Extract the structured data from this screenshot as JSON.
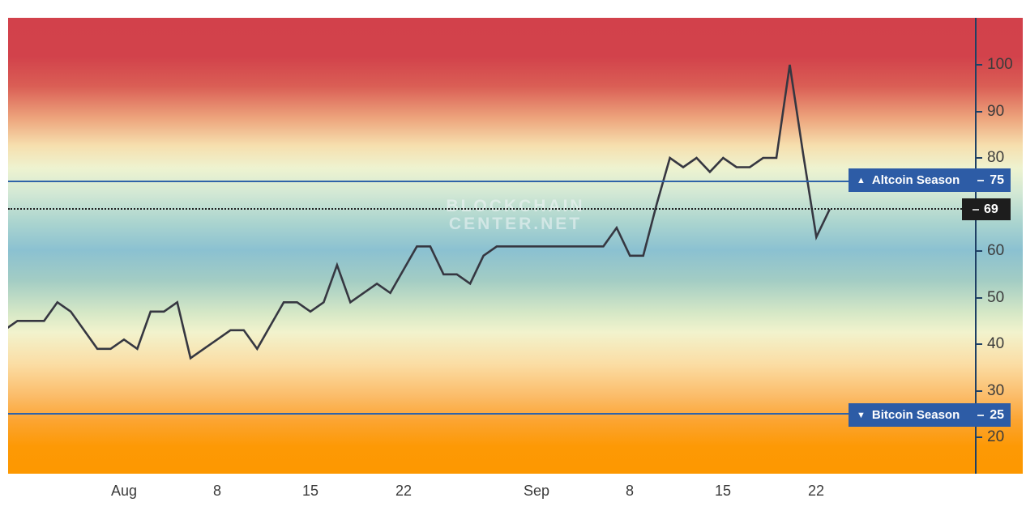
{
  "watermark": {
    "line1": "BLOCKCHAIN",
    "line2": "CENTER.NET"
  },
  "badges": {
    "altcoin": {
      "icon_glyph": "▲",
      "label": "Altcoin Season",
      "value": "75"
    },
    "bitcoin": {
      "icon_glyph": "▼",
      "label": "Bitcoin Season",
      "value": "25"
    },
    "current": {
      "value": "69"
    }
  },
  "y_axis": {
    "tick_labels": [
      "100",
      "90",
      "80",
      "60",
      "50",
      "40",
      "30",
      "20"
    ],
    "tick_values": [
      100,
      90,
      80,
      60,
      50,
      40,
      30,
      20
    ]
  },
  "x_axis": {
    "tick_labels": [
      "Aug",
      "8",
      "15",
      "22",
      "Sep",
      "8",
      "15",
      "22"
    ]
  },
  "colors": {
    "gradient_top": "#d2414b",
    "gradient_bottom": "#fd9800",
    "blue_60_band": "#8bc1d1",
    "threshold_line": "#2f63a8",
    "badge_background": "#2d5ca6",
    "current_badge_background": "#1d1d1d",
    "axis_line": "#1f4064",
    "chart_line": "#363741",
    "tick_text": "#3b3b3b"
  },
  "chart_data": {
    "type": "line",
    "x": [
      "Jul 23",
      "Jul 24",
      "Jul 25",
      "Jul 26",
      "Jul 27",
      "Jul 28",
      "Jul 29",
      "Jul 30",
      "Jul 31",
      "Aug 1",
      "Aug 2",
      "Aug 3",
      "Aug 4",
      "Aug 5",
      "Aug 6",
      "Aug 7",
      "Aug 8",
      "Aug 9",
      "Aug 10",
      "Aug 11",
      "Aug 12",
      "Aug 13",
      "Aug 14",
      "Aug 15",
      "Aug 16",
      "Aug 17",
      "Aug 18",
      "Aug 19",
      "Aug 20",
      "Aug 21",
      "Aug 22",
      "Aug 23",
      "Aug 24",
      "Aug 25",
      "Aug 26",
      "Aug 27",
      "Aug 28",
      "Aug 29",
      "Aug 30",
      "Aug 31",
      "Sep 1",
      "Sep 2",
      "Sep 3",
      "Sep 4",
      "Sep 5",
      "Sep 6",
      "Sep 7",
      "Sep 8",
      "Sep 9",
      "Sep 10",
      "Sep 11",
      "Sep 12",
      "Sep 13",
      "Sep 14",
      "Sep 15",
      "Sep 16",
      "Sep 17",
      "Sep 18",
      "Sep 19",
      "Sep 20",
      "Sep 21",
      "Sep 22",
      "Sep 23"
    ],
    "values": [
      43,
      45,
      45,
      45,
      49,
      47,
      43,
      39,
      39,
      41,
      39,
      47,
      47,
      49,
      37,
      39,
      41,
      43,
      43,
      39,
      44,
      49,
      49,
      47,
      49,
      57,
      49,
      51,
      53,
      51,
      56,
      61,
      61,
      55,
      55,
      53,
      59,
      61,
      61,
      61,
      61,
      61,
      61,
      61,
      61,
      61,
      65,
      59,
      59,
      70,
      80,
      78,
      80,
      77,
      80,
      78,
      78,
      80,
      80,
      100,
      81,
      63,
      69
    ],
    "x_tick_labels": [
      "Aug",
      "8",
      "15",
      "22",
      "Sep",
      "8",
      "15",
      "22"
    ],
    "y_tick_values": [
      100,
      90,
      80,
      60,
      50,
      40,
      30,
      20
    ],
    "ylim_visible": [
      12,
      110
    ],
    "grid": false,
    "legend": false,
    "thresholds": [
      {
        "label": "Altcoin Season",
        "value": 75
      },
      {
        "label": "Bitcoin Season",
        "value": 25
      }
    ],
    "current_value": 69
  }
}
